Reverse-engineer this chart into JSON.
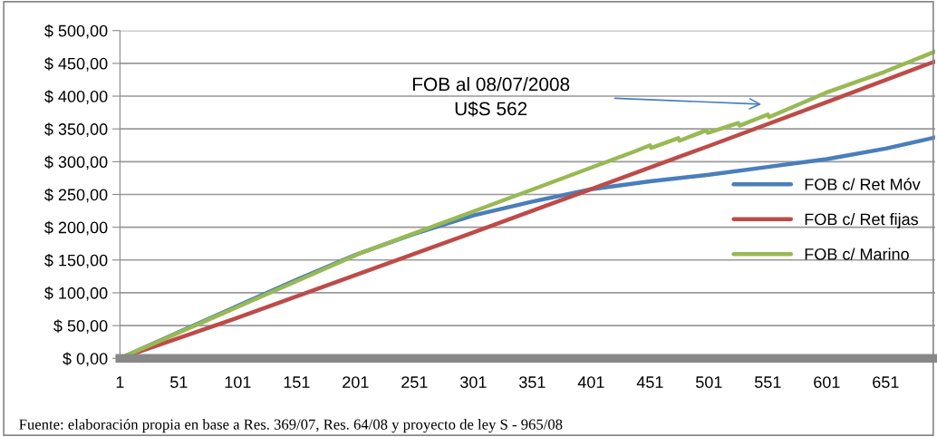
{
  "chart_data": {
    "type": "line",
    "xlim": [
      1,
      693
    ],
    "xticks": [
      1,
      51,
      101,
      151,
      201,
      251,
      301,
      351,
      401,
      451,
      501,
      551,
      601,
      651
    ],
    "ylim": [
      0,
      500
    ],
    "yticks": [
      {
        "value": 0,
        "label": "$ 0,00"
      },
      {
        "value": 50,
        "label": "$ 50,00"
      },
      {
        "value": 100,
        "label": "$ 100,00"
      },
      {
        "value": 150,
        "label": "$ 150,00"
      },
      {
        "value": 200,
        "label": "$ 200,00"
      },
      {
        "value": 250,
        "label": "$ 250,00"
      },
      {
        "value": 300,
        "label": "$ 300,00"
      },
      {
        "value": 350,
        "label": "$ 350,00"
      },
      {
        "value": 400,
        "label": "$ 400,00"
      },
      {
        "value": 450,
        "label": "$ 450,00"
      },
      {
        "value": 500,
        "label": "$ 500,00"
      }
    ],
    "grid": "y",
    "legend": "right",
    "marker": "none",
    "line_style": "solid",
    "series": [
      {
        "name": "FOB c/ Ret Móv",
        "color": "#4a7ebb",
        "x": [
          1,
          51,
          101,
          151,
          201,
          251,
          301,
          351,
          401,
          451,
          501,
          551,
          601,
          651,
          693
        ],
        "values": [
          0,
          40,
          80,
          120,
          158,
          190,
          218,
          239,
          258,
          270,
          280,
          292,
          304,
          320,
          337
        ]
      },
      {
        "name": "FOB c/ Ret fijas",
        "color": "#be4b48",
        "x": [
          1,
          101,
          201,
          301,
          401,
          501,
          601,
          693
        ],
        "values": [
          0,
          62,
          127,
          192,
          258,
          324,
          391,
          453
        ]
      },
      {
        "name": "FOB c/ Marino",
        "color": "#98b954",
        "x": [
          1,
          206,
          301,
          437,
          451,
          452,
          475,
          476,
          499,
          500,
          526,
          527,
          551,
          552,
          600,
          650,
          693
        ],
        "values": [
          0,
          161,
          224,
          315,
          325,
          321,
          336,
          332,
          348,
          344,
          359,
          355,
          372,
          368,
          405,
          437,
          468
        ]
      }
    ],
    "annotations": [
      "FOB al 08/07/2008\nU$S 562",
      "Fuente: elaboración propia en base a Res. 369/07, Res. 64/08 y proyecto de ley S - 965/08"
    ]
  }
}
